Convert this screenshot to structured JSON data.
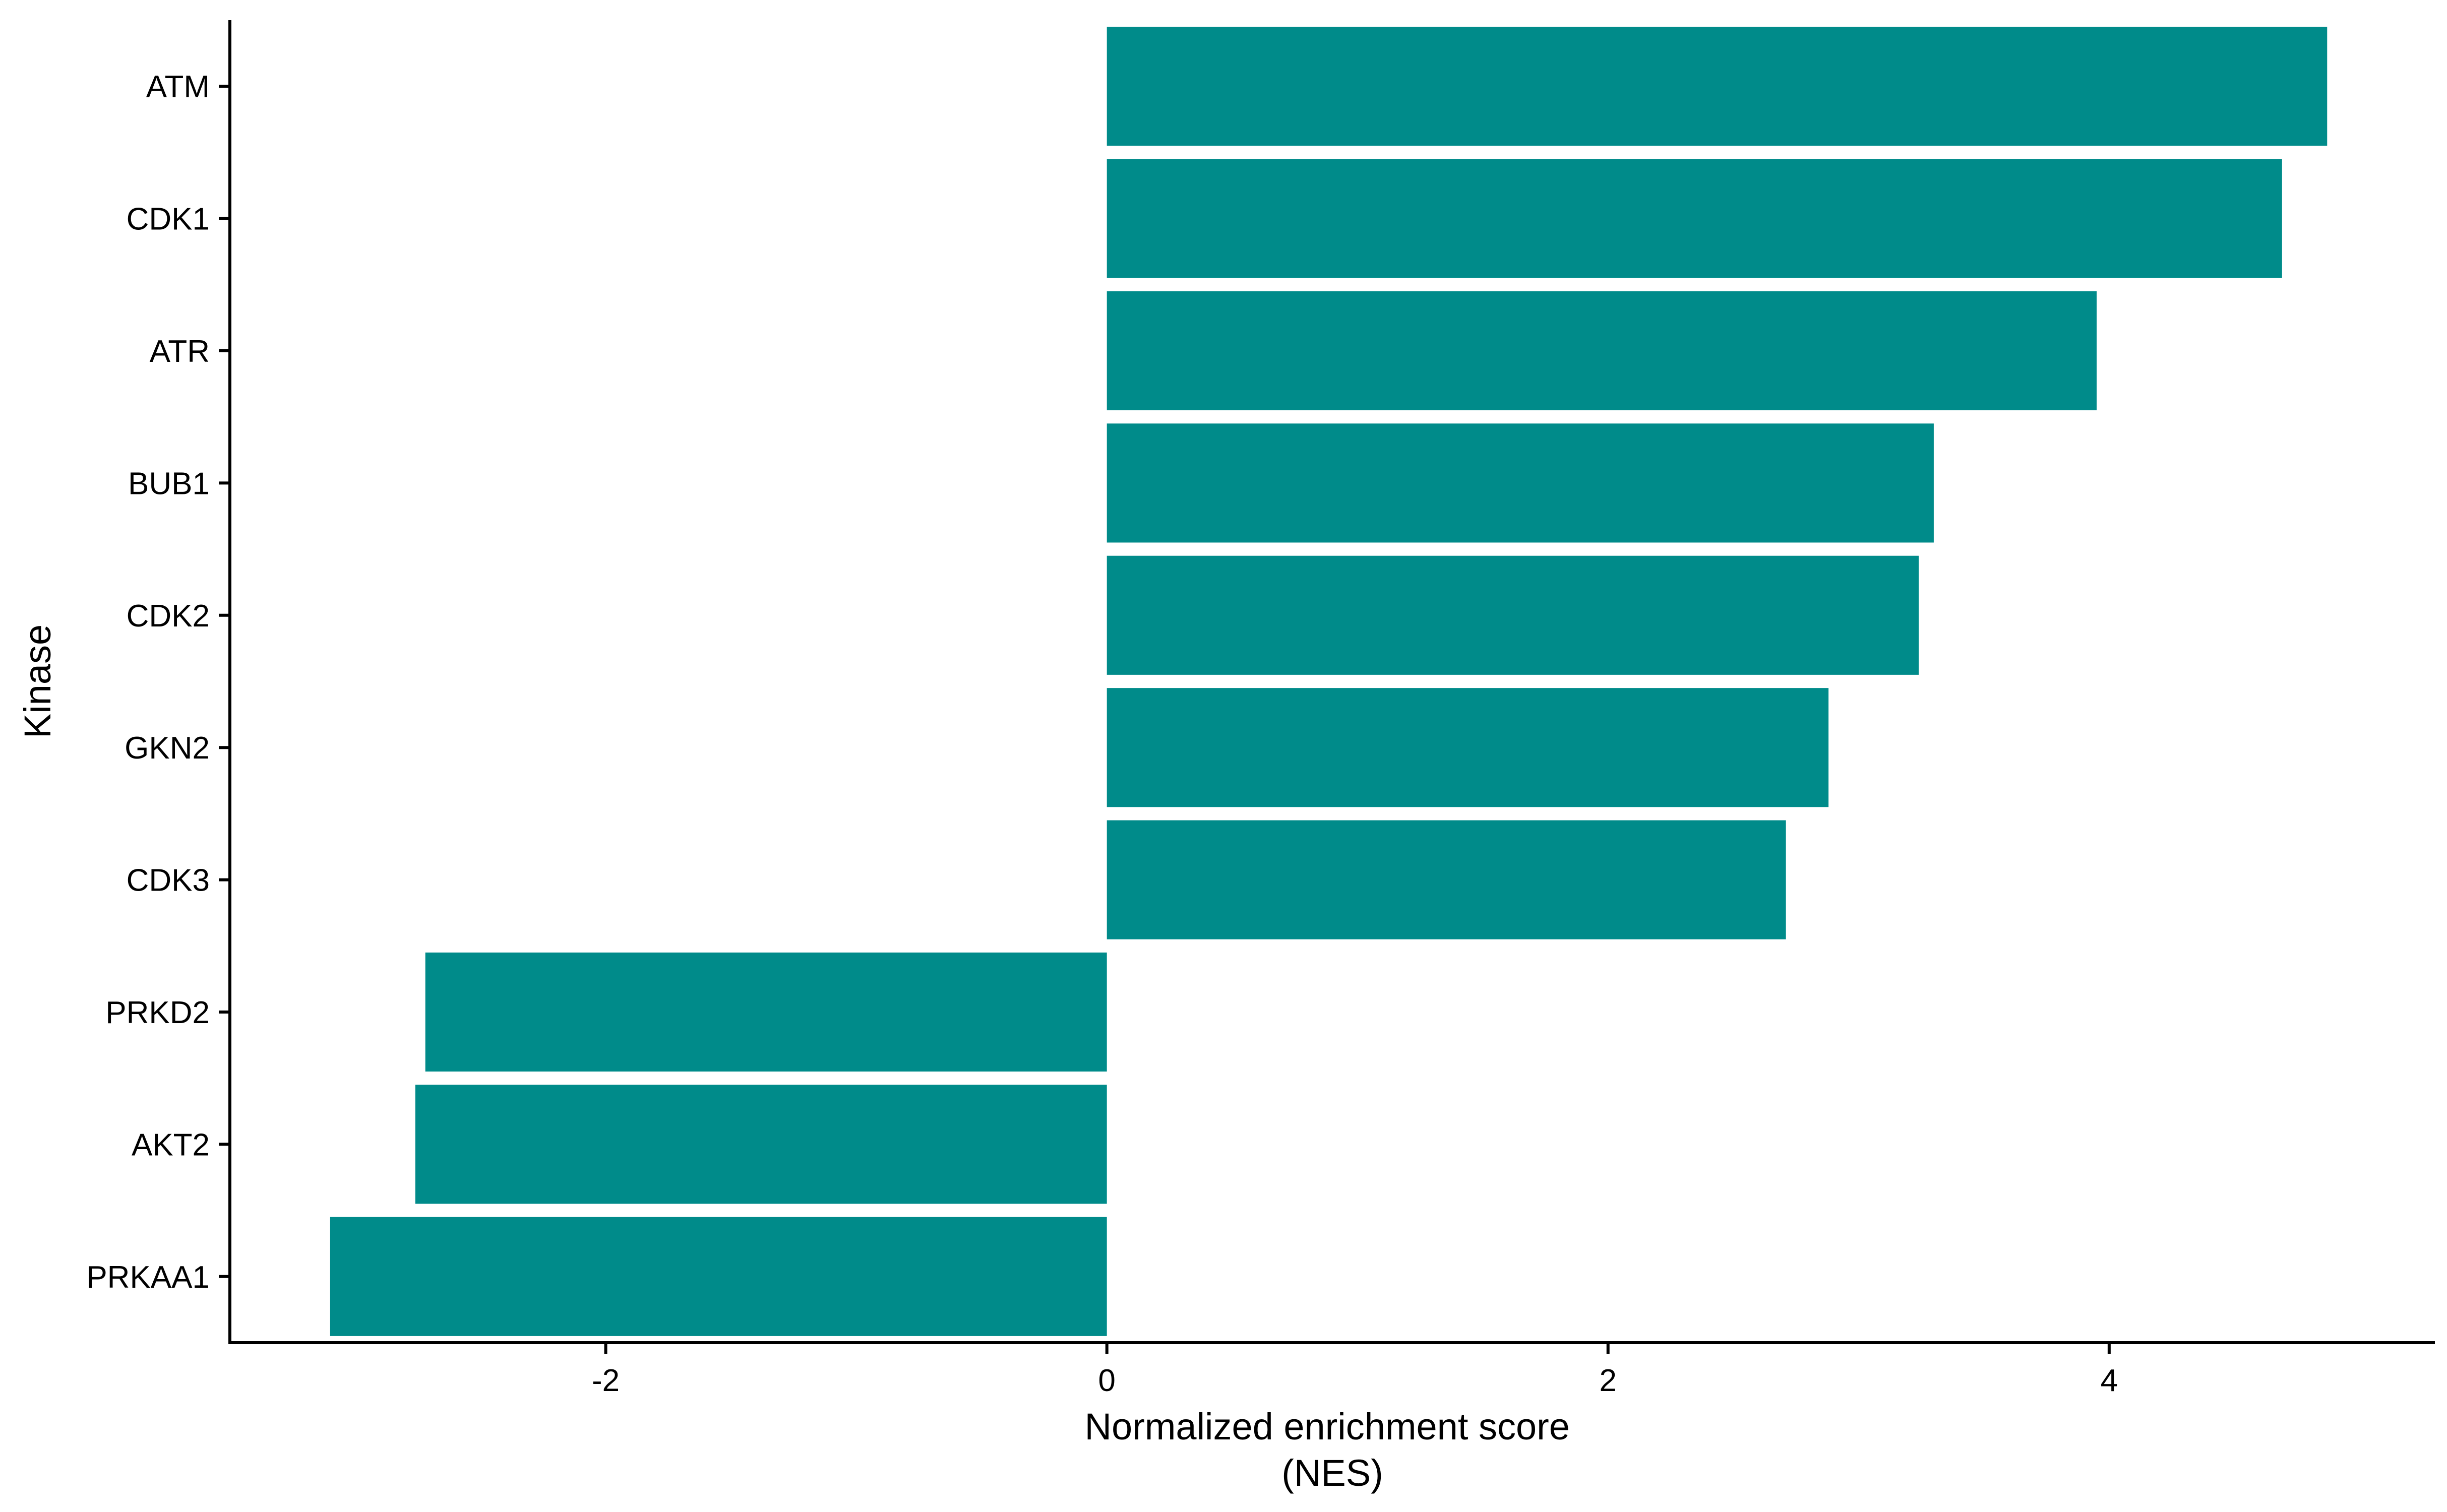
{
  "chart_data": {
    "type": "bar",
    "orientation": "horizontal",
    "title": "",
    "xlabel_lines": [
      "Normalized enrichment score",
      "(NES)"
    ],
    "ylabel": "Kinase",
    "categories": [
      "ATM",
      "CDK1",
      "ATR",
      "BUB1",
      "CDK2",
      "GKN2",
      "CDK3",
      "PRKD2",
      "AKT2",
      "PRKAA1"
    ],
    "values": [
      4.87,
      4.69,
      3.95,
      3.3,
      3.24,
      2.88,
      2.71,
      -2.72,
      -2.76,
      -3.1
    ],
    "xlim": [
      -3.5,
      5.3
    ],
    "xticks": [
      -2,
      0,
      2,
      4
    ],
    "bar_color": "#008B8A",
    "grid": false,
    "legend": "none"
  }
}
